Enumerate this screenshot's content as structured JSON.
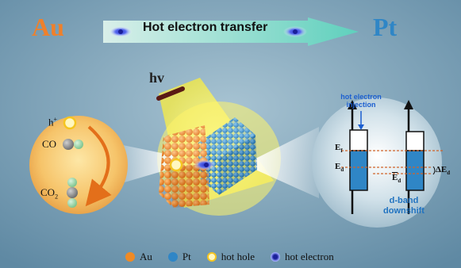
{
  "title_left": "Au",
  "title_right": "Pt",
  "arrow_label": "Hot electron transfer",
  "light_label": "hv",
  "left_inset": {
    "hole_label": "h",
    "hole_sup": "+",
    "co_label": "CO",
    "co2_label": "CO",
    "co2_sub": "2"
  },
  "right_inset": {
    "injection_line1": "hot electron",
    "injection_line2": "injection",
    "ef_label": "E",
    "ef_sub": "f",
    "ed_label": "E",
    "ed_sub": "d",
    "ed_tilde_label": "E",
    "ed_tilde_sub": "d",
    "delta_label": "ΔE",
    "delta_sub": "d",
    "dband_line1": "d-band",
    "dband_line2": "downshift"
  },
  "legend": [
    {
      "label": "Au",
      "color": "#f08a24",
      "kind": "dot"
    },
    {
      "label": "Pt",
      "color": "#2f86c6",
      "kind": "dot"
    },
    {
      "label": "hot hole",
      "color": "#f5d23a",
      "kind": "ring"
    },
    {
      "label": "hot electron",
      "color": "#2a35c8",
      "kind": "electron"
    }
  ],
  "colors": {
    "background": "#6f96ae",
    "au": "#f08a24",
    "pt": "#2f86c6",
    "arrow": "#7fd8c8",
    "light": "#fff46a"
  }
}
